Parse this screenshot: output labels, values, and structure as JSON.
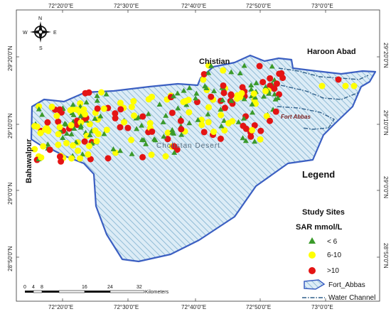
{
  "coordinates": {
    "top": [
      "72°20'0\"E",
      "72°30'0\"E",
      "72°40'0\"E",
      "72°50'0\"E",
      "73°0'0\"E"
    ],
    "bottom": [
      "72°20'0\"E",
      "72°30'0\"E",
      "72°40'0\"E",
      "72°50'0\"E",
      "73°0'0\"E"
    ],
    "left": [
      "29°20'0\"N",
      "29°10'0\"N",
      "29°0'0\"N",
      "28°50'0\"N"
    ],
    "right": [
      "29°20'0\"N",
      "29°10'0\"N",
      "29°0'0\"N",
      "28°50'0\"N"
    ]
  },
  "compass": {
    "n": "N",
    "s": "S",
    "e": "E",
    "w": "W"
  },
  "places": {
    "bahawalpur": "Bahawalpur",
    "chistian": "Chistian",
    "haroon_abad": "Haroon Abad",
    "fort_abbas": "Fort Abbas",
    "desert": "Cholistan Desert"
  },
  "legend": {
    "title": "Legend",
    "subtitle": "Study Sites",
    "sar_label": "SAR  mmol/L",
    "items": [
      {
        "symbol": "triangle",
        "color": "#3a9a2a",
        "label": "< 6"
      },
      {
        "symbol": "circle",
        "color": "#ffff00",
        "label": "6-10"
      },
      {
        "symbol": "circle",
        "color": "#e41414",
        "label": ">10"
      }
    ],
    "area_label": "Fort_Abbas",
    "channel_label": "Water Channel"
  },
  "scale": {
    "ticks": [
      "0",
      "4",
      "8",
      "16",
      "24",
      "32"
    ],
    "unit": "Kilometers"
  },
  "colors": {
    "region_fill": "#d6eaf5",
    "region_hatch": "#8ab8d4",
    "region_outline": "#3b5fc2",
    "channel": "#2f5f8a"
  }
}
